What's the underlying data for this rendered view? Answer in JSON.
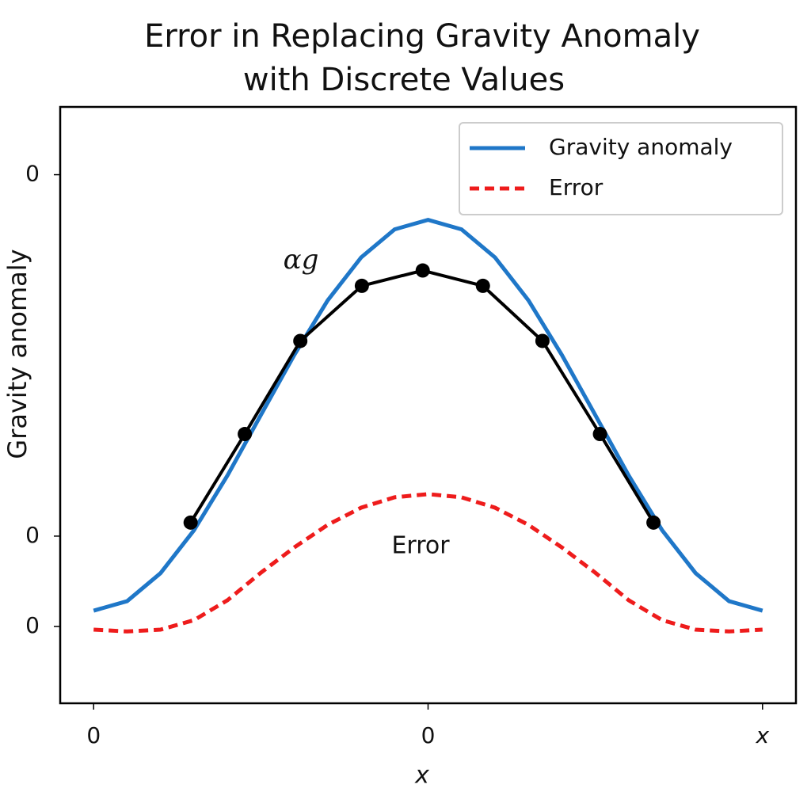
{
  "chart_data": {
    "type": "line",
    "title": [
      "Error in Replacing Gravity Anomaly",
      "with Discrete Values"
    ],
    "xlabel": "x",
    "ylabel": "Gravity anomaly",
    "annotations": [
      "αg",
      "Error"
    ],
    "x": [
      0,
      0.05,
      0.1,
      0.15,
      0.2,
      0.25,
      0.3,
      0.35,
      0.4,
      0.45,
      0.5,
      0.55,
      0.6,
      0.65,
      0.7,
      0.75,
      0.8,
      0.85,
      0.9,
      0.95,
      1
    ],
    "series": [
      {
        "name": "Gravity anomaly",
        "color": "#1f77c8",
        "style": "solid",
        "values": [
          0.035,
          0.056,
          0.118,
          0.213,
          0.334,
          0.468,
          0.601,
          0.722,
          0.817,
          0.879,
          0.9,
          0.879,
          0.817,
          0.722,
          0.601,
          0.468,
          0.334,
          0.213,
          0.118,
          0.056,
          0.035
        ]
      },
      {
        "name": "Error",
        "color": "#ee1c1c",
        "style": "dashed",
        "values": [
          -0.007,
          -0.011,
          -0.007,
          0.014,
          0.058,
          0.119,
          0.175,
          0.225,
          0.263,
          0.286,
          0.293,
          0.286,
          0.263,
          0.225,
          0.175,
          0.119,
          0.058,
          0.014,
          -0.007,
          -0.011,
          -0.007
        ]
      }
    ],
    "samples": {
      "color": "#000000",
      "x": [
        0.145,
        0.226,
        0.309,
        0.401,
        0.492,
        0.582,
        0.671,
        0.757,
        0.837
      ],
      "values": [
        0.23,
        0.426,
        0.632,
        0.754,
        0.788,
        0.754,
        0.632,
        0.426,
        0.23
      ]
    },
    "xlim": [
      -0.05,
      1.05
    ],
    "ylim": [
      -0.17,
      1.15
    ],
    "xticks": [
      {
        "value": 0,
        "label": "0"
      },
      {
        "value": 0.5,
        "label": "0"
      },
      {
        "value": 1,
        "label": "x"
      }
    ],
    "yticks": [
      {
        "value": 0,
        "label": "0"
      },
      {
        "value": 0.2,
        "label": "0"
      },
      {
        "value": 1,
        "label": "0"
      }
    ],
    "legend": "upper right"
  }
}
